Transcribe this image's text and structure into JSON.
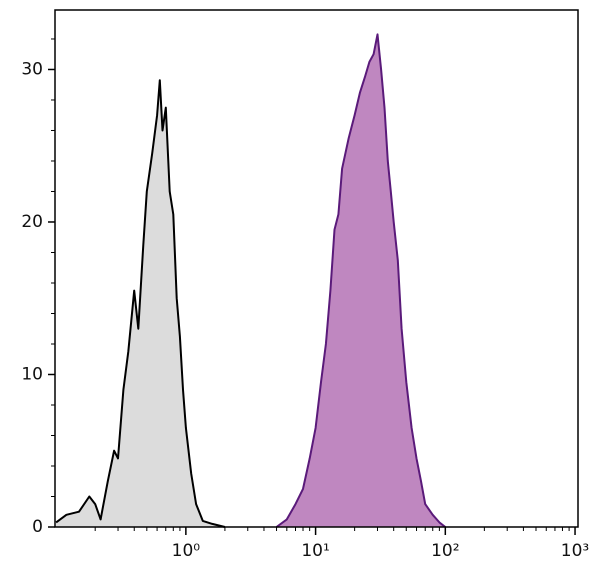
{
  "chart_data": {
    "type": "histogram-area",
    "xscale": "log",
    "xlim": [
      0.098,
      1054
    ],
    "ylim": [
      0,
      33.9
    ],
    "xticks": [
      {
        "value": 1,
        "label": "10⁰"
      },
      {
        "value": 10,
        "label": "10¹"
      },
      {
        "value": 100,
        "label": "10²"
      },
      {
        "value": 1000,
        "label": "10³"
      }
    ],
    "xminorticks": [
      0.2,
      0.3,
      0.4,
      0.5,
      0.6,
      0.7,
      0.8,
      0.9,
      2,
      3,
      4,
      5,
      6,
      7,
      8,
      9,
      20,
      30,
      40,
      50,
      60,
      70,
      80,
      90,
      200,
      300,
      400,
      500,
      600,
      700,
      800,
      900
    ],
    "yticks": [
      0,
      10,
      20,
      30
    ],
    "yminorticks": [
      2,
      4,
      6,
      8,
      12,
      14,
      16,
      18,
      22,
      24,
      26,
      28,
      32
    ],
    "series": [
      {
        "color": "#000000",
        "fill": "#dcdcdc",
        "x": [
          0.1,
          0.12,
          0.15,
          0.18,
          0.2,
          0.22,
          0.25,
          0.28,
          0.3,
          0.33,
          0.36,
          0.4,
          0.43,
          0.47,
          0.5,
          0.55,
          0.6,
          0.63,
          0.66,
          0.7,
          0.75,
          0.8,
          0.85,
          0.9,
          0.95,
          1.0,
          1.1,
          1.2,
          1.35,
          1.6,
          2.0
        ],
        "values": [
          0.3,
          0.8,
          1.0,
          2.0,
          1.5,
          0.5,
          3.0,
          5.0,
          4.5,
          9.0,
          11.5,
          15.5,
          13.0,
          18.5,
          22.0,
          24.5,
          27.0,
          29.3,
          26.0,
          27.5,
          22.0,
          20.5,
          15.0,
          12.5,
          9.0,
          6.5,
          3.5,
          1.5,
          0.4,
          0.2,
          0
        ]
      },
      {
        "color": "#5a1a7a",
        "fill": "#bf87c0",
        "x": [
          5,
          6,
          7,
          8,
          9,
          10,
          11,
          12,
          13,
          14,
          15,
          16,
          18,
          20,
          22,
          24,
          26,
          28,
          30,
          32,
          34,
          36,
          38,
          40,
          43,
          46,
          50,
          55,
          60,
          65,
          70,
          80,
          90,
          100
        ],
        "values": [
          0,
          0.5,
          1.5,
          2.5,
          4.5,
          6.5,
          9.5,
          12.0,
          15.5,
          19.5,
          20.5,
          23.5,
          25.5,
          27.0,
          28.5,
          29.5,
          30.5,
          31.0,
          32.3,
          30.0,
          27.5,
          24.0,
          22.0,
          20.0,
          17.5,
          13.0,
          9.5,
          6.5,
          4.5,
          3.0,
          1.5,
          0.8,
          0.3,
          0
        ]
      }
    ]
  }
}
